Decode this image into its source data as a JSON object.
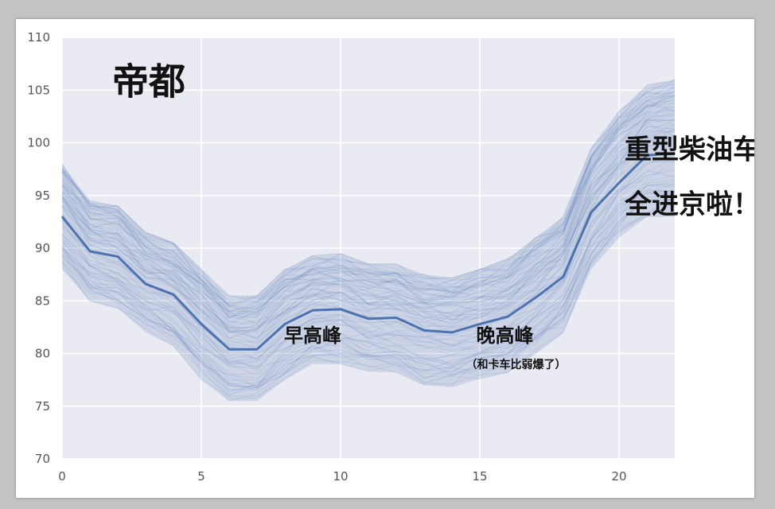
{
  "colors": {
    "page_background": "#c3c3c3",
    "slide_background": "#ffffff",
    "plot_background": "#eaeaf2",
    "grid": "#ffffff",
    "band_line": "#4c72b0",
    "mean_line": "#4c72b0",
    "tick_text": "#555555",
    "annotation_text": "#111111"
  },
  "chart_data": {
    "type": "line",
    "title": "",
    "xlabel": "",
    "ylabel": "",
    "xlim": [
      0,
      22
    ],
    "ylim": [
      70,
      110
    ],
    "grid": true,
    "x_ticks": [
      0,
      5,
      10,
      15,
      20
    ],
    "y_ticks": [
      70,
      75,
      80,
      85,
      90,
      95,
      100,
      105,
      110
    ],
    "x": [
      0,
      1,
      2,
      3,
      4,
      5,
      6,
      7,
      8,
      9,
      10,
      11,
      12,
      13,
      14,
      15,
      16,
      17,
      18,
      19,
      20,
      21,
      22
    ],
    "series": [
      {
        "role": "mean",
        "values": [
          93,
          89.7,
          89.2,
          86.6,
          85.6,
          82.8,
          80.4,
          80.4,
          82.8,
          84.1,
          84.2,
          83.3,
          83.4,
          82.2,
          82,
          82.8,
          83.5,
          85.3,
          87.3,
          93.4,
          96.2,
          98.8,
          99
        ]
      },
      {
        "role": "band-upper",
        "values": [
          98,
          94.5,
          94,
          91.5,
          90.5,
          88,
          85.5,
          85.5,
          88,
          89.3,
          89.5,
          88.5,
          88.5,
          87.5,
          87.2,
          88,
          89,
          91,
          93,
          99.5,
          103,
          105.5,
          106
        ]
      },
      {
        "role": "band-lower",
        "values": [
          88,
          85,
          84.3,
          82,
          80.7,
          77.5,
          75.5,
          75.5,
          77.5,
          79,
          79,
          78.3,
          78.2,
          77,
          76.8,
          77.6,
          78.2,
          80,
          82,
          88,
          91,
          93,
          93
        ]
      }
    ],
    "annotations": [
      {
        "text": "帝都",
        "x": 1.8,
        "y": 104.6,
        "size": 46
      },
      {
        "text": "重型柴油车",
        "x": 20.2,
        "y": 98.5,
        "size": 34
      },
      {
        "text": "全进京啦！",
        "x": 20.2,
        "y": 93.3,
        "size": 34
      },
      {
        "text": "早高峰",
        "x": 9,
        "y": 81.1,
        "size": 24
      },
      {
        "text": "晚高峰",
        "x": 15.9,
        "y": 81.1,
        "size": 24
      },
      {
        "text": "（和卡车比弱爆了）",
        "x": 16.3,
        "y": 78.6,
        "size": 14
      }
    ]
  }
}
